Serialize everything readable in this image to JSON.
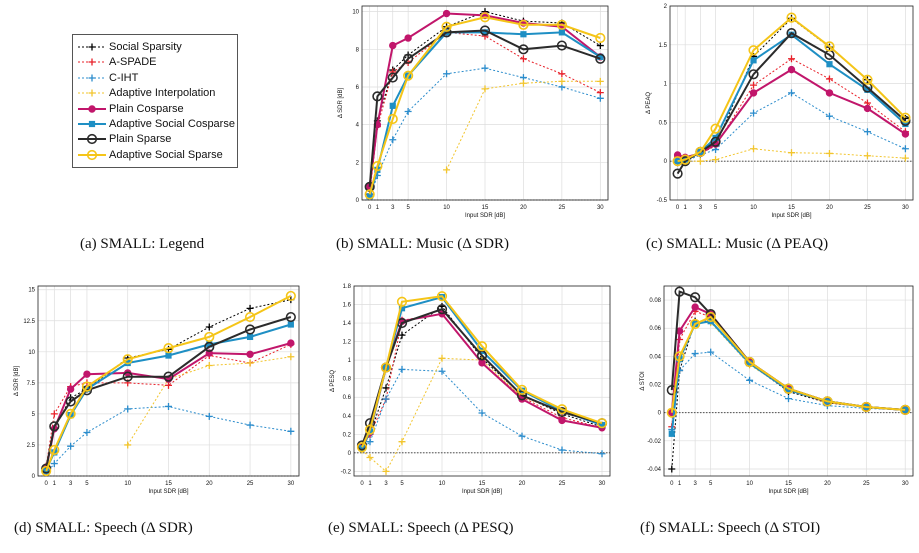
{
  "series_styles": [
    {
      "name": "Social Sparsity",
      "color": "#000000",
      "dash": "2,2",
      "marker": "plus",
      "width": 1
    },
    {
      "name": "A-SPADE",
      "color": "#e8212a",
      "dash": "2,2",
      "marker": "plus",
      "width": 1
    },
    {
      "name": "C-IHT",
      "color": "#2b8ccc",
      "dash": "2,2",
      "marker": "plus",
      "width": 1
    },
    {
      "name": "Adaptive Interpolation",
      "color": "#f2c52e",
      "dash": "2,2",
      "marker": "plus",
      "width": 1
    },
    {
      "name": "Plain Cosparse",
      "color": "#c1166b",
      "dash": "",
      "marker": "dot",
      "width": 2
    },
    {
      "name": "Adaptive Social Cosparse",
      "color": "#1e8fc4",
      "dash": "",
      "marker": "square",
      "width": 2
    },
    {
      "name": "Plain Sparse",
      "color": "#2b2b2b",
      "dash": "",
      "marker": "circle",
      "width": 2
    },
    {
      "name": "Adaptive Social Sparse",
      "color": "#f5c518",
      "dash": "",
      "marker": "circle",
      "width": 2
    }
  ],
  "captions": [
    "(a) SMALL: Legend",
    "(b) SMALL: Music (Δ SDR)",
    "(c) SMALL: Music (Δ PEAQ)",
    "(d) SMALL: Speech (Δ SDR)",
    "(e) SMALL: Speech (Δ PESQ)",
    "(f) SMALL: Speech (Δ STOI)"
  ],
  "chart_data": [
    {
      "type": "line",
      "xlabel": "Input SDR [dB]",
      "ylabel": "Δ SDR [dB]",
      "x": [
        0,
        1,
        3,
        5,
        10,
        15,
        20,
        25,
        30
      ],
      "xticks": [
        "0",
        "1",
        "3",
        "5",
        "10",
        "15",
        "20",
        "25",
        "30"
      ],
      "ylim": [
        0,
        10.3
      ],
      "yticks": [
        "0",
        "2",
        "4",
        "6",
        "8",
        "10"
      ],
      "ytick_values": [
        0,
        2,
        4,
        6,
        8,
        10
      ],
      "grid": true,
      "series": [
        {
          "name": "Social Sparsity",
          "values": [
            0.3,
            4.2,
            6.9,
            7.7,
            9.2,
            10.0,
            9.5,
            9.4,
            8.2
          ]
        },
        {
          "name": "A-SPADE",
          "values": [
            0.3,
            3.9,
            6.8,
            7.3,
            8.9,
            8.7,
            7.5,
            6.7,
            5.7
          ]
        },
        {
          "name": "C-IHT",
          "values": [
            0.1,
            1.3,
            3.2,
            4.7,
            6.7,
            7.0,
            6.5,
            6.0,
            5.4
          ]
        },
        {
          "name": "Adaptive Interpolation",
          "values": [
            null,
            null,
            null,
            null,
            1.6,
            5.9,
            6.2,
            6.3,
            6.3
          ]
        },
        {
          "name": "Plain Cosparse",
          "values": [
            0.7,
            4.0,
            8.2,
            8.6,
            9.9,
            9.8,
            9.4,
            9.2,
            7.6
          ]
        },
        {
          "name": "Adaptive Social Cosparse",
          "values": [
            0.2,
            1.6,
            5.0,
            6.6,
            8.9,
            8.9,
            8.8,
            8.9,
            7.6
          ]
        },
        {
          "name": "Plain Sparse",
          "values": [
            0.7,
            5.5,
            6.5,
            7.5,
            8.9,
            9.0,
            8.0,
            8.2,
            7.5
          ]
        },
        {
          "name": "Adaptive Social Sparse",
          "values": [
            0.3,
            1.8,
            4.3,
            6.6,
            9.2,
            9.7,
            9.3,
            9.3,
            8.6
          ]
        }
      ]
    },
    {
      "type": "line",
      "xlabel": "Input SDR [dB]",
      "ylabel": "Δ PEAQ",
      "x": [
        0,
        1,
        3,
        5,
        10,
        15,
        20,
        25,
        30
      ],
      "xticks": [
        "0",
        "1",
        "3",
        "5",
        "10",
        "15",
        "20",
        "25",
        "30"
      ],
      "ylim": [
        -0.5,
        2
      ],
      "yticks": [
        "-0.5",
        "0",
        "0.5",
        "1",
        "1.5",
        "2"
      ],
      "ytick_values": [
        -0.5,
        0,
        0.5,
        1,
        1.5,
        2
      ],
      "grid": true,
      "series": [
        {
          "name": "Social Sparsity",
          "values": [
            -0.02,
            0.02,
            0.1,
            0.2,
            1.35,
            1.84,
            1.47,
            1.05,
            0.55
          ]
        },
        {
          "name": "A-SPADE",
          "values": [
            0.05,
            0.02,
            0.1,
            0.2,
            0.98,
            1.32,
            1.06,
            0.75,
            0.38
          ]
        },
        {
          "name": "C-IHT",
          "values": [
            0.0,
            0.0,
            0.08,
            0.15,
            0.62,
            0.88,
            0.58,
            0.38,
            0.16
          ]
        },
        {
          "name": "Adaptive Interpolation",
          "values": [
            0.0,
            0.0,
            0.0,
            0.02,
            0.16,
            0.11,
            0.1,
            0.07,
            0.04
          ]
        },
        {
          "name": "Plain Cosparse",
          "values": [
            0.08,
            0.05,
            0.1,
            0.22,
            0.88,
            1.18,
            0.88,
            0.68,
            0.35
          ]
        },
        {
          "name": "Adaptive Social Cosparse",
          "values": [
            0.0,
            0.02,
            0.12,
            0.3,
            1.3,
            1.63,
            1.25,
            0.92,
            0.48
          ]
        },
        {
          "name": "Plain Sparse",
          "values": [
            -0.16,
            0.0,
            0.12,
            0.25,
            1.12,
            1.65,
            1.37,
            0.95,
            0.52
          ]
        },
        {
          "name": "Adaptive Social Sparse",
          "values": [
            0.0,
            0.02,
            0.12,
            0.42,
            1.43,
            1.85,
            1.48,
            1.05,
            0.56
          ]
        }
      ]
    },
    {
      "type": "line",
      "xlabel": "Input SDR [dB]",
      "ylabel": "Δ SDR [dB]",
      "x": [
        0,
        1,
        3,
        5,
        10,
        15,
        20,
        25,
        30
      ],
      "xticks": [
        "0",
        "1",
        "3",
        "5",
        "10",
        "15",
        "20",
        "25",
        "30"
      ],
      "ylim": [
        0,
        15.3
      ],
      "yticks": [
        "0",
        "2.5",
        "5",
        "7.5",
        "10",
        "12.5",
        "15"
      ],
      "ytick_values": [
        0,
        2.5,
        5,
        7.5,
        10,
        12.5,
        15
      ],
      "grid": true,
      "series": [
        {
          "name": "Social Sparsity",
          "values": [
            0.6,
            3.8,
            6.3,
            7.0,
            9.5,
            10.2,
            12.0,
            13.5,
            14.2
          ]
        },
        {
          "name": "A-SPADE",
          "values": [
            0.8,
            5.0,
            7.2,
            7.5,
            7.5,
            7.3,
            9.7,
            9.1,
            10.6
          ]
        },
        {
          "name": "C-IHT",
          "values": [
            0.2,
            1.0,
            2.4,
            3.5,
            5.4,
            5.6,
            4.8,
            4.1,
            3.6
          ]
        },
        {
          "name": "Adaptive Interpolation",
          "values": [
            null,
            null,
            null,
            null,
            2.5,
            7.8,
            8.9,
            9.1,
            9.6
          ]
        },
        {
          "name": "Plain Cosparse",
          "values": [
            0.6,
            3.8,
            7.0,
            8.2,
            8.3,
            7.8,
            9.9,
            9.8,
            10.7
          ]
        },
        {
          "name": "Adaptive Social Cosparse",
          "values": [
            0.5,
            1.9,
            4.9,
            7.0,
            9.1,
            9.7,
            10.6,
            11.2,
            12.2
          ]
        },
        {
          "name": "Plain Sparse",
          "values": [
            0.6,
            4.0,
            6.0,
            6.9,
            8.0,
            8.0,
            10.4,
            11.8,
            12.8
          ]
        },
        {
          "name": "Adaptive Social Sparse",
          "values": [
            0.4,
            2.1,
            5.0,
            7.2,
            9.4,
            10.3,
            11.2,
            12.8,
            14.5
          ]
        }
      ]
    },
    {
      "type": "line",
      "xlabel": "Input SDR [dB]",
      "ylabel": "Δ PESQ",
      "x": [
        0,
        1,
        3,
        5,
        10,
        15,
        20,
        25,
        30
      ],
      "xticks": [
        "0",
        "1",
        "3",
        "5",
        "10",
        "15",
        "20",
        "25",
        "30"
      ],
      "ylim": [
        -0.25,
        1.8
      ],
      "yticks": [
        "-0.2",
        "0",
        "0.2",
        "0.4",
        "0.6",
        "0.8",
        "1",
        "1.2",
        "1.4",
        "1.6",
        "1.8"
      ],
      "ytick_values": [
        -0.2,
        0,
        0.2,
        0.4,
        0.6,
        0.8,
        1,
        1.2,
        1.4,
        1.6,
        1.8
      ],
      "grid": true,
      "series": [
        {
          "name": "Social Sparsity",
          "values": [
            0.05,
            0.2,
            0.7,
            1.27,
            1.58,
            1.02,
            0.62,
            0.42,
            0.28
          ]
        },
        {
          "name": "A-SPADE",
          "values": [
            0.05,
            0.2,
            0.58,
            1.43,
            1.5,
            0.97,
            0.6,
            0.38,
            0.27
          ]
        },
        {
          "name": "C-IHT",
          "values": [
            0.03,
            0.12,
            0.58,
            0.9,
            0.88,
            0.43,
            0.18,
            0.03,
            -0.01
          ]
        },
        {
          "name": "Adaptive Interpolation",
          "values": [
            0.03,
            -0.05,
            -0.2,
            0.12,
            1.02,
            1.0,
            0.6,
            0.45,
            0.3
          ]
        },
        {
          "name": "Plain Cosparse",
          "values": [
            0.06,
            0.22,
            0.92,
            1.42,
            1.5,
            0.97,
            0.58,
            0.35,
            0.27
          ]
        },
        {
          "name": "Adaptive Social Cosparse",
          "values": [
            0.05,
            0.23,
            0.92,
            1.56,
            1.68,
            1.1,
            0.67,
            0.45,
            0.3
          ]
        },
        {
          "name": "Plain Sparse",
          "values": [
            0.08,
            0.32,
            0.92,
            1.4,
            1.55,
            1.05,
            0.62,
            0.44,
            0.32
          ]
        },
        {
          "name": "Adaptive Social Sparse",
          "values": [
            0.06,
            0.25,
            0.92,
            1.63,
            1.69,
            1.15,
            0.68,
            0.47,
            0.32
          ]
        }
      ]
    },
    {
      "type": "line",
      "xlabel": "Input SDR [dB]",
      "ylabel": "Δ STOI",
      "x": [
        0,
        1,
        3,
        5,
        10,
        15,
        20,
        25,
        30
      ],
      "xticks": [
        "0",
        "1",
        "3",
        "5",
        "10",
        "15",
        "20",
        "25",
        "30"
      ],
      "ylim": [
        -0.045,
        0.09
      ],
      "yticks": [
        "-0.04",
        "-0.02",
        "0",
        "0.02",
        "0.04",
        "0.06",
        "0.08"
      ],
      "ytick_values": [
        -0.04,
        -0.02,
        0,
        0.02,
        0.04,
        0.06,
        0.08
      ],
      "grid": true,
      "series": [
        {
          "name": "Social Sparsity",
          "values": [
            -0.04,
            0.03,
            0.065,
            0.065,
            0.035,
            0.015,
            0.007,
            0.004,
            0.002
          ]
        },
        {
          "name": "A-SPADE",
          "values": [
            -0.01,
            0.052,
            0.072,
            0.068,
            0.035,
            0.016,
            0.007,
            0.004,
            0.002
          ]
        },
        {
          "name": "C-IHT",
          "values": [
            -0.012,
            0.03,
            0.042,
            0.043,
            0.023,
            0.01,
            0.005,
            0.003,
            0.002
          ]
        },
        {
          "name": "Adaptive Interpolation",
          "values": [
            0.0,
            0.038,
            0.064,
            0.064,
            0.034,
            0.016,
            0.007,
            0.004,
            0.002
          ]
        },
        {
          "name": "Plain Cosparse",
          "values": [
            0.0,
            0.058,
            0.075,
            0.07,
            0.036,
            0.017,
            0.008,
            0.004,
            0.002
          ]
        },
        {
          "name": "Adaptive Social Cosparse",
          "values": [
            -0.015,
            0.038,
            0.063,
            0.065,
            0.035,
            0.016,
            0.008,
            0.004,
            0.002
          ]
        },
        {
          "name": "Plain Sparse",
          "values": [
            0.016,
            0.086,
            0.082,
            0.07,
            0.036,
            0.017,
            0.008,
            0.004,
            0.002
          ]
        },
        {
          "name": "Adaptive Social Sparse",
          "values": [
            0.0,
            0.04,
            0.063,
            0.068,
            0.036,
            0.017,
            0.008,
            0.004,
            0.002
          ]
        }
      ]
    }
  ]
}
